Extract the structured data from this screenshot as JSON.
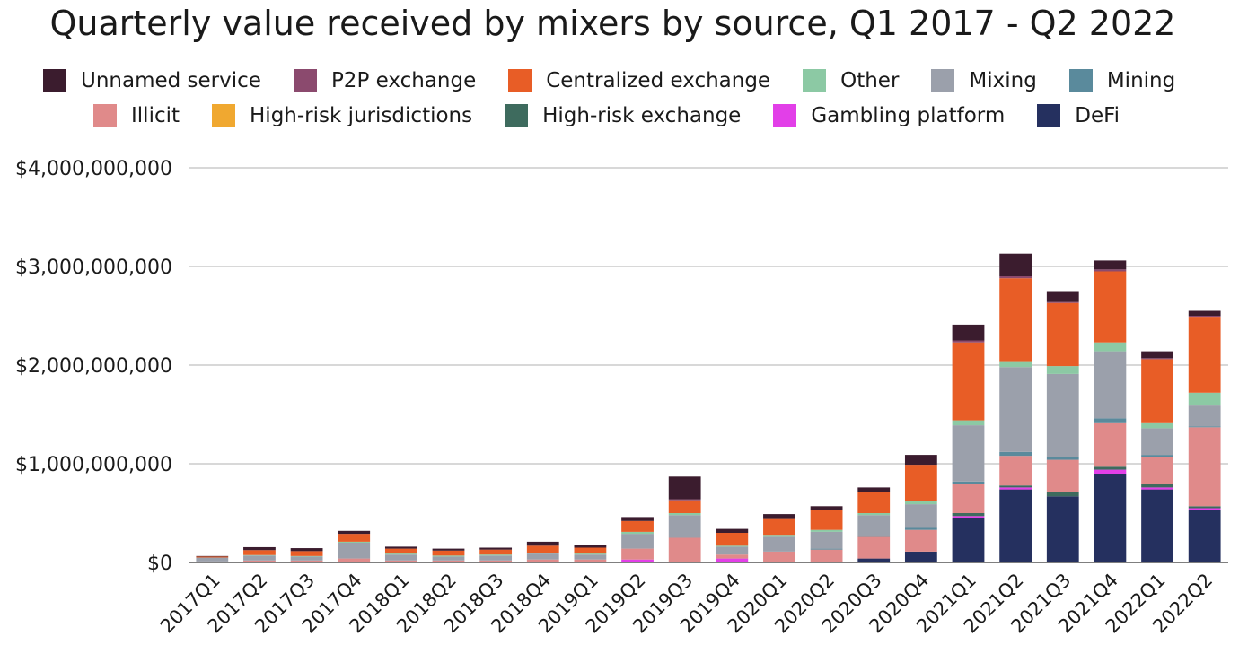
{
  "chart_data": {
    "type": "bar",
    "stacked": true,
    "title": "Quarterly value received by mixers by source, Q1 2017 - Q2 2022",
    "xlabel": "",
    "ylabel": "",
    "ylim": [
      0,
      4000000000
    ],
    "yticks": [
      0,
      1000000000,
      2000000000,
      3000000000,
      4000000000
    ],
    "ytick_labels": [
      "$0",
      "$1,000,000,000",
      "$2,000,000,000",
      "$3,000,000,000",
      "$4,000,000,000"
    ],
    "grid": true,
    "legend_position": "top",
    "categories": [
      "2017Q1",
      "2017Q2",
      "2017Q3",
      "2017Q4",
      "2018Q1",
      "2018Q2",
      "2018Q3",
      "2018Q4",
      "2019Q1",
      "2019Q2",
      "2019Q3",
      "2019Q4",
      "2020Q1",
      "2020Q2",
      "2020Q3",
      "2020Q4",
      "2021Q1",
      "2021Q2",
      "2021Q3",
      "2021Q4",
      "2022Q1",
      "2022Q2"
    ],
    "series": [
      {
        "name": "DeFi",
        "color": "#25305f",
        "values": [
          0,
          0,
          0,
          0,
          0,
          0,
          0,
          0,
          0,
          0,
          0,
          0,
          0,
          0,
          40000000,
          110000000,
          450000000,
          740000000,
          670000000,
          900000000,
          740000000,
          530000000
        ]
      },
      {
        "name": "Gambling platform",
        "color": "#e23fe8",
        "values": [
          0,
          0,
          0,
          0,
          0,
          0,
          0,
          0,
          0,
          30000000,
          0,
          40000000,
          0,
          0,
          0,
          0,
          20000000,
          20000000,
          0,
          40000000,
          20000000,
          20000000
        ]
      },
      {
        "name": "High-risk exchange",
        "color": "#3e6b5e",
        "values": [
          0,
          0,
          0,
          0,
          0,
          0,
          0,
          0,
          0,
          0,
          0,
          0,
          0,
          0,
          0,
          0,
          30000000,
          20000000,
          40000000,
          30000000,
          40000000,
          20000000
        ]
      },
      {
        "name": "High-risk jurisdictions",
        "color": "#f0a830",
        "values": [
          0,
          0,
          0,
          0,
          0,
          0,
          0,
          0,
          0,
          0,
          0,
          0,
          0,
          0,
          0,
          0,
          0,
          0,
          0,
          0,
          0,
          0
        ]
      },
      {
        "name": "Illicit",
        "color": "#e08a8a",
        "values": [
          10000000,
          20000000,
          20000000,
          40000000,
          20000000,
          20000000,
          20000000,
          30000000,
          30000000,
          110000000,
          250000000,
          40000000,
          110000000,
          130000000,
          220000000,
          220000000,
          300000000,
          300000000,
          330000000,
          450000000,
          270000000,
          800000000
        ]
      },
      {
        "name": "Mining",
        "color": "#5a8a9c",
        "values": [
          0,
          0,
          0,
          0,
          0,
          0,
          0,
          0,
          0,
          0,
          0,
          0,
          0,
          10000000,
          10000000,
          20000000,
          20000000,
          40000000,
          30000000,
          40000000,
          20000000,
          10000000
        ]
      },
      {
        "name": "Mixing",
        "color": "#9ba0ab",
        "values": [
          40000000,
          50000000,
          40000000,
          160000000,
          60000000,
          40000000,
          50000000,
          60000000,
          50000000,
          150000000,
          230000000,
          80000000,
          150000000,
          170000000,
          210000000,
          240000000,
          570000000,
          860000000,
          840000000,
          680000000,
          270000000,
          210000000
        ]
      },
      {
        "name": "Other",
        "color": "#8cc9a4",
        "values": [
          0,
          5000000,
          5000000,
          10000000,
          10000000,
          10000000,
          10000000,
          10000000,
          10000000,
          20000000,
          20000000,
          10000000,
          20000000,
          20000000,
          20000000,
          30000000,
          50000000,
          60000000,
          80000000,
          90000000,
          60000000,
          130000000
        ]
      },
      {
        "name": "Centralized exchange",
        "color": "#e85d26",
        "values": [
          10000000,
          50000000,
          50000000,
          80000000,
          50000000,
          50000000,
          50000000,
          70000000,
          60000000,
          110000000,
          130000000,
          130000000,
          160000000,
          200000000,
          210000000,
          370000000,
          790000000,
          840000000,
          640000000,
          720000000,
          640000000,
          770000000
        ]
      },
      {
        "name": "P2P exchange",
        "color": "#8b4a6e",
        "values": [
          0,
          0,
          0,
          0,
          0,
          0,
          0,
          0,
          0,
          0,
          10000000,
          0,
          0,
          0,
          0,
          0,
          20000000,
          20000000,
          10000000,
          20000000,
          10000000,
          10000000
        ]
      },
      {
        "name": "Unnamed service",
        "color": "#3b1c2e",
        "values": [
          5000000,
          30000000,
          30000000,
          30000000,
          20000000,
          20000000,
          20000000,
          40000000,
          30000000,
          40000000,
          230000000,
          40000000,
          50000000,
          40000000,
          50000000,
          100000000,
          160000000,
          230000000,
          110000000,
          90000000,
          70000000,
          50000000
        ]
      }
    ]
  },
  "legend": {
    "rows": [
      [
        "Unnamed service",
        "P2P exchange",
        "Centralized exchange",
        "Other",
        "Mixing",
        "Mining"
      ],
      [
        "Illicit",
        "High-risk jurisdictions",
        "High-risk exchange",
        "Gambling platform",
        "DeFi"
      ]
    ]
  }
}
